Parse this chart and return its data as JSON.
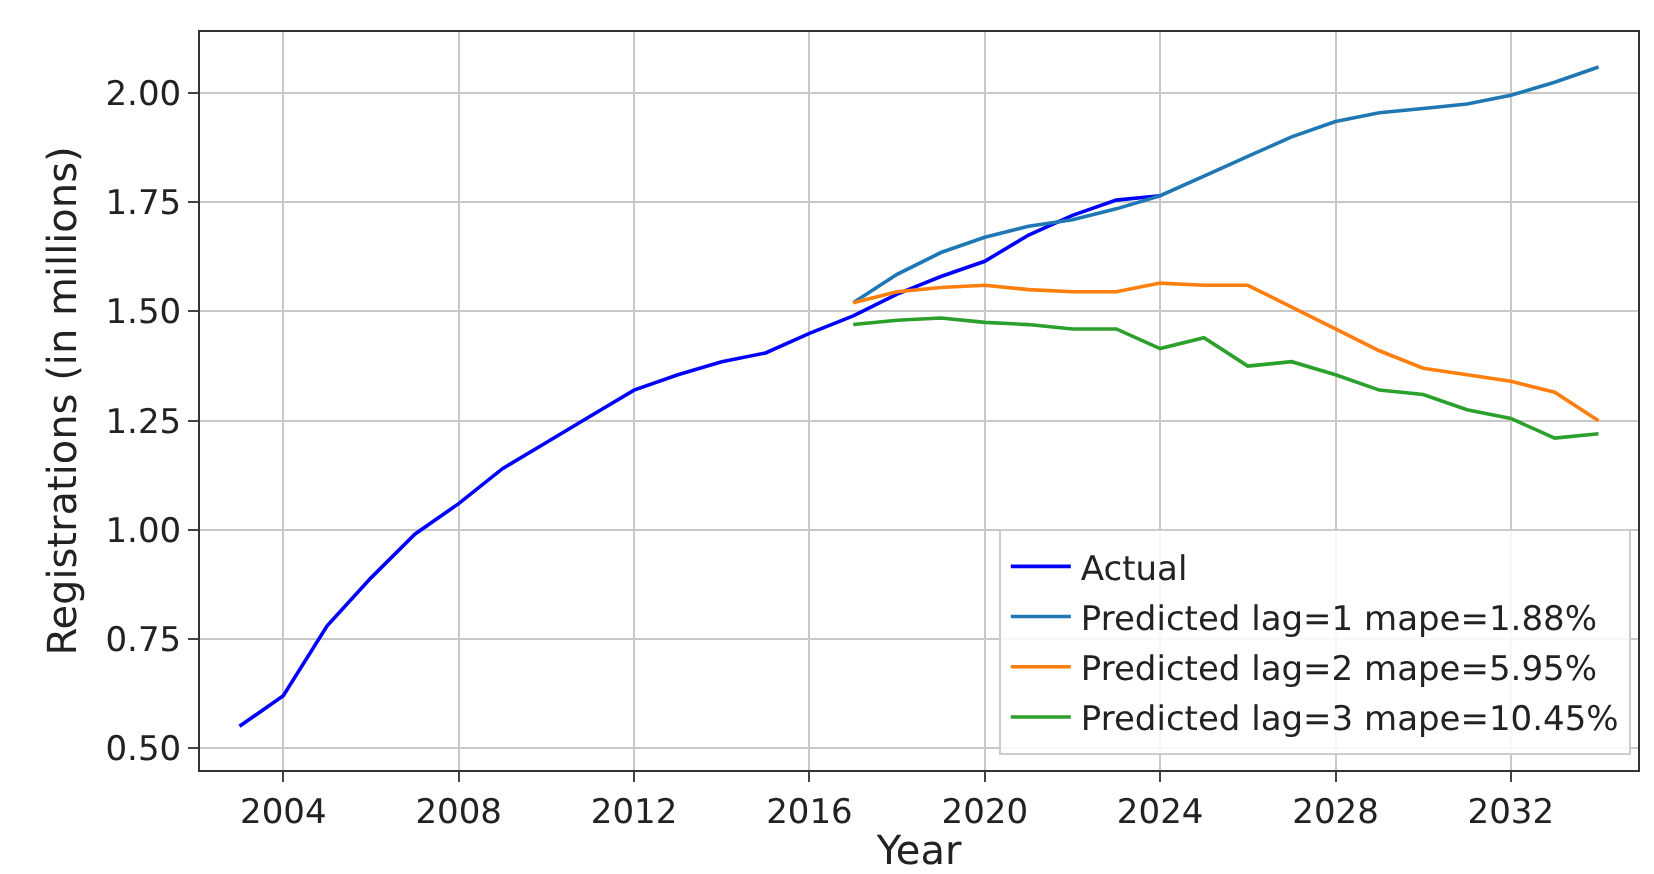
{
  "chart_data": {
    "type": "line",
    "xlabel": "Year",
    "ylabel": "Registrations (in millions)",
    "xlim": [
      2002.1,
      2034.9
    ],
    "xticks": [
      2004,
      2008,
      2012,
      2016,
      2020,
      2024,
      2028,
      2032
    ],
    "ylim": [
      0.45,
      2.14
    ],
    "yticks": [
      {
        "value": 0.5,
        "label": "0.50"
      },
      {
        "value": 0.75,
        "label": "0.75"
      },
      {
        "value": 1,
        "label": "1.00"
      },
      {
        "value": 1.25,
        "label": "1.25"
      },
      {
        "value": 1.5,
        "label": "1.50"
      },
      {
        "value": 1.75,
        "label": "1.75"
      },
      {
        "value": 2,
        "label": "2.00"
      }
    ],
    "grid": true,
    "legend": "bottom right",
    "marker": "none",
    "line_style": "solid",
    "series": [
      {
        "name": "Actual",
        "color": "#0000ff",
        "x": [
          2003,
          2004,
          2005,
          2006,
          2007,
          2008,
          2009,
          2010,
          2011,
          2012,
          2013,
          2014,
          2015,
          2016,
          2017,
          2018,
          2019,
          2020,
          2021,
          2022,
          2023,
          2024
        ],
        "values": [
          0.55,
          0.62,
          0.78,
          0.89,
          0.99,
          1.06,
          1.14,
          1.2,
          1.26,
          1.32,
          1.355,
          1.385,
          1.405,
          1.45,
          1.49,
          1.54,
          1.58,
          1.615,
          1.675,
          1.72,
          1.755,
          1.765
        ]
      },
      {
        "name": "Predicted lag=1 mape=1.88%",
        "color": "#1f77b4",
        "x": [
          2017,
          2018,
          2019,
          2020,
          2021,
          2022,
          2023,
          2024,
          2025,
          2026,
          2027,
          2028,
          2029,
          2030,
          2031,
          2032,
          2033,
          2034
        ],
        "values": [
          1.52,
          1.585,
          1.635,
          1.67,
          1.695,
          1.71,
          1.735,
          1.765,
          1.81,
          1.855,
          1.9,
          1.935,
          1.955,
          1.965,
          1.975,
          1.995,
          2.025,
          2.06
        ]
      },
      {
        "name": "Predicted lag=2 mape=5.95%",
        "color": "#ff7f0e",
        "x": [
          2017,
          2018,
          2019,
          2020,
          2021,
          2022,
          2023,
          2024,
          2025,
          2026,
          2027,
          2028,
          2029,
          2030,
          2031,
          2032,
          2033,
          2034
        ],
        "values": [
          1.52,
          1.545,
          1.555,
          1.56,
          1.55,
          1.545,
          1.545,
          1.565,
          1.56,
          1.56,
          1.51,
          1.46,
          1.41,
          1.37,
          1.355,
          1.34,
          1.315,
          1.25
        ]
      },
      {
        "name": "Predicted lag=3 mape=10.45%",
        "color": "#2ca02c",
        "x": [
          2017,
          2018,
          2019,
          2020,
          2021,
          2022,
          2023,
          2024,
          2025,
          2026,
          2027,
          2028,
          2029,
          2030,
          2031,
          2032,
          2033,
          2034
        ],
        "values": [
          1.47,
          1.48,
          1.485,
          1.475,
          1.47,
          1.46,
          1.46,
          1.415,
          1.44,
          1.375,
          1.385,
          1.355,
          1.32,
          1.31,
          1.275,
          1.255,
          1.21,
          1.22
        ]
      }
    ]
  }
}
